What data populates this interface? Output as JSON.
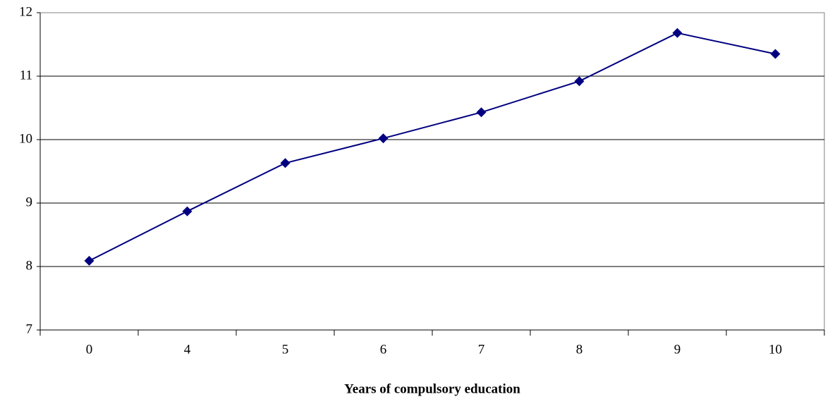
{
  "chart_data": {
    "type": "line",
    "x_label": "Years of compulsory education",
    "categories": [
      "0",
      "4",
      "5",
      "6",
      "7",
      "8",
      "9",
      "10"
    ],
    "values": [
      8.09,
      8.87,
      9.63,
      10.02,
      10.43,
      10.92,
      11.68,
      11.35
    ],
    "color": "#000080",
    "ylim": [
      7,
      12
    ],
    "yticks": [
      7,
      8,
      9,
      10,
      11,
      12
    ],
    "grid": true
  }
}
